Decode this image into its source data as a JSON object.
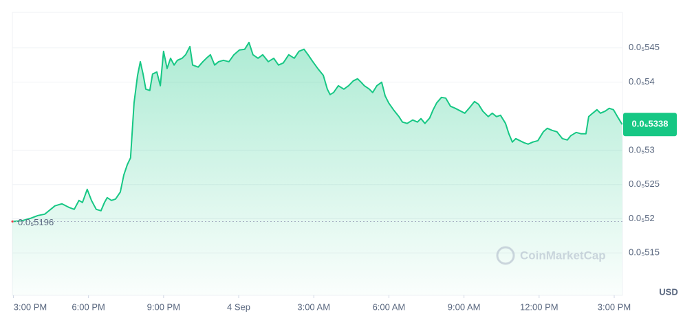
{
  "chart_data": {
    "type": "line",
    "x": [
      14.96,
      15.29,
      15.7,
      15.98,
      16.25,
      16.39,
      16.66,
      16.94,
      17.21,
      17.43,
      17.62,
      17.76,
      17.95,
      18.12,
      18.31,
      18.5,
      18.64,
      18.75,
      18.92,
      19.08,
      19.27,
      19.41,
      19.55,
      19.68,
      19.82,
      19.96,
      20.07,
      20.18,
      20.29,
      20.45,
      20.56,
      20.73,
      20.87,
      21.0,
      21.14,
      21.28,
      21.42,
      21.55,
      21.74,
      21.88,
      22.05,
      22.16,
      22.38,
      22.57,
      22.71,
      22.87,
      23.04,
      23.2,
      23.39,
      23.61,
      23.81,
      24.03,
      24.24,
      24.41,
      24.57,
      24.77,
      24.96,
      25.18,
      25.4,
      25.59,
      25.78,
      26.0,
      26.22,
      26.41,
      26.61,
      26.77,
      26.96,
      27.16,
      27.38,
      27.54,
      27.65,
      27.79,
      27.98,
      28.2,
      28.39,
      28.58,
      28.75,
      28.89,
      29.02,
      29.22,
      29.35,
      29.52,
      29.71,
      29.85,
      29.99,
      30.18,
      30.4,
      30.54,
      30.73,
      30.95,
      31.14,
      31.28,
      31.44,
      31.63,
      31.77,
      31.91,
      32.1,
      32.27,
      32.46,
      32.65,
      32.87,
      33.03,
      33.2,
      33.42,
      33.58,
      33.75,
      33.97,
      34.13,
      34.3,
      34.46,
      34.66,
      34.79,
      34.93,
      35.07,
      35.23,
      35.4,
      35.56,
      35.75,
      35.95,
      36.17,
      36.33,
      36.52,
      36.71,
      36.93,
      37.13,
      37.26,
      37.48,
      37.67,
      37.87,
      37.98,
      38.14,
      38.31,
      38.45,
      38.64,
      38.8,
      38.97,
      39.13,
      39.32
    ],
    "series": [
      {
        "color": "#16c784",
        "values": [
          5.196e-06,
          5.1967e-06,
          5.2008e-06,
          5.2048e-06,
          5.2068e-06,
          5.2108e-06,
          5.2189e-06,
          5.2219e-06,
          5.2168e-06,
          5.2138e-06,
          5.2269e-06,
          5.2239e-06,
          5.243e-06,
          5.2269e-06,
          5.2138e-06,
          5.2118e-06,
          5.2239e-06,
          5.2309e-06,
          5.2269e-06,
          5.2289e-06,
          5.239e-06,
          5.2641e-06,
          5.2792e-06,
          5.2892e-06,
          5.3696e-06,
          5.4098e-06,
          5.4299e-06,
          5.4118e-06,
          5.3897e-06,
          5.3877e-06,
          5.4118e-06,
          5.4148e-06,
          5.3947e-06,
          5.445e-06,
          5.4199e-06,
          5.4349e-06,
          5.4249e-06,
          5.4319e-06,
          5.4349e-06,
          5.44e-06,
          5.452e-06,
          5.4249e-06,
          5.4219e-06,
          5.4299e-06,
          5.4349e-06,
          5.44e-06,
          5.4249e-06,
          5.4299e-06,
          5.4319e-06,
          5.4299e-06,
          5.44e-06,
          5.447e-06,
          5.448e-06,
          5.458e-06,
          5.44e-06,
          5.4349e-06,
          5.44e-06,
          5.4299e-06,
          5.4349e-06,
          5.4249e-06,
          5.4279e-06,
          5.44e-06,
          5.4349e-06,
          5.445e-06,
          5.448e-06,
          5.44e-06,
          5.4299e-06,
          5.4199e-06,
          5.4098e-06,
          5.3897e-06,
          5.3817e-06,
          5.3847e-06,
          5.3947e-06,
          5.3897e-06,
          5.3947e-06,
          5.4018e-06,
          5.4048e-06,
          5.3998e-06,
          5.3947e-06,
          5.3897e-06,
          5.3847e-06,
          5.3947e-06,
          5.3998e-06,
          5.3797e-06,
          5.3696e-06,
          5.3596e-06,
          5.3495e-06,
          5.3415e-06,
          5.3395e-06,
          5.3445e-06,
          5.3415e-06,
          5.3465e-06,
          5.3395e-06,
          5.3475e-06,
          5.3596e-06,
          5.3696e-06,
          5.3776e-06,
          5.3766e-06,
          5.3646e-06,
          5.3616e-06,
          5.3575e-06,
          5.3545e-06,
          5.3616e-06,
          5.3716e-06,
          5.3676e-06,
          5.3575e-06,
          5.3495e-06,
          5.3545e-06,
          5.3495e-06,
          5.3515e-06,
          5.3395e-06,
          5.3244e-06,
          5.3123e-06,
          5.3173e-06,
          5.3143e-06,
          5.3113e-06,
          5.3093e-06,
          5.3123e-06,
          5.3143e-06,
          5.3274e-06,
          5.3324e-06,
          5.3294e-06,
          5.3274e-06,
          5.3173e-06,
          5.3153e-06,
          5.3214e-06,
          5.3264e-06,
          5.3244e-06,
          5.3244e-06,
          5.3495e-06,
          5.3545e-06,
          5.3596e-06,
          5.3545e-06,
          5.3575e-06,
          5.3616e-06,
          5.3596e-06,
          5.3495e-06,
          5.338e-06
        ]
      }
    ],
    "xlim": [
      14.96,
      39.33
    ],
    "xticks": [
      {
        "value": 15,
        "label": "3:00 PM"
      },
      {
        "value": 18,
        "label": "6:00 PM"
      },
      {
        "value": 21,
        "label": "9:00 PM"
      },
      {
        "value": 24,
        "label": "4 Sep"
      },
      {
        "value": 27,
        "label": "3:00 AM"
      },
      {
        "value": 30,
        "label": "6:00 AM"
      },
      {
        "value": 33,
        "label": "9:00 AM"
      },
      {
        "value": 36,
        "label": "12:00 PM"
      },
      {
        "value": 39,
        "label": "3:00 PM"
      }
    ],
    "ylim": [
      5.088e-06,
      5.502e-06
    ],
    "yticks": [
      {
        "value": 5.45e-06,
        "label": "0.0₅545"
      },
      {
        "value": 5.4e-06,
        "label": "0.0₅54"
      },
      {
        "value": 5.3e-06,
        "label": "0.0₅53"
      },
      {
        "value": 5.25e-06,
        "label": "0.0₅525"
      },
      {
        "value": 5.2e-06,
        "label": "0.0₅52"
      },
      {
        "value": 5.15e-06,
        "label": "0.0₅515"
      }
    ],
    "grid": true,
    "open_price": {
      "value": 5.196e-06,
      "label": "0.0₅5196"
    },
    "last_price": {
      "value": 5.338e-06,
      "label": "0.0₅5338"
    },
    "currency": "USD",
    "watermark": "CoinMarketCap"
  }
}
